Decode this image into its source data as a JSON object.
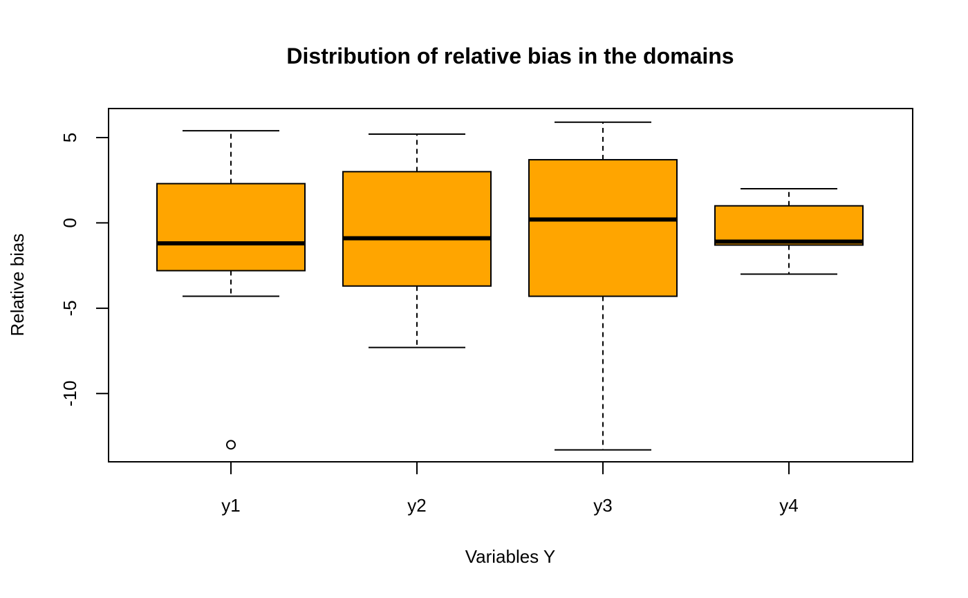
{
  "chart_data": {
    "type": "boxplot",
    "title": "Distribution of relative bias in the domains",
    "xlabel": "Variables Y",
    "ylabel": "Relative bias",
    "categories": [
      "y1",
      "y2",
      "y3",
      "y4"
    ],
    "yticks": [
      -10,
      -5,
      0,
      5
    ],
    "ylim": [
      -14.0,
      6.7
    ],
    "grid": false,
    "legend": "none",
    "box_color": "#FFA500",
    "line_color": "#000000",
    "boxes": [
      {
        "category": "y1",
        "whisker_low": -4.3,
        "q1": -2.8,
        "median": -1.2,
        "q3": 2.3,
        "whisker_high": 5.4,
        "outliers": [
          -13.0
        ]
      },
      {
        "category": "y2",
        "whisker_low": -7.3,
        "q1": -3.7,
        "median": -0.9,
        "q3": 3.0,
        "whisker_high": 5.2,
        "outliers": []
      },
      {
        "category": "y3",
        "whisker_low": -13.3,
        "q1": -4.3,
        "median": 0.2,
        "q3": 3.7,
        "whisker_high": 5.9,
        "outliers": []
      },
      {
        "category": "y4",
        "whisker_low": -3.0,
        "q1": -1.3,
        "median": -1.1,
        "q3": 1.0,
        "whisker_high": 2.0,
        "outliers": []
      }
    ]
  }
}
